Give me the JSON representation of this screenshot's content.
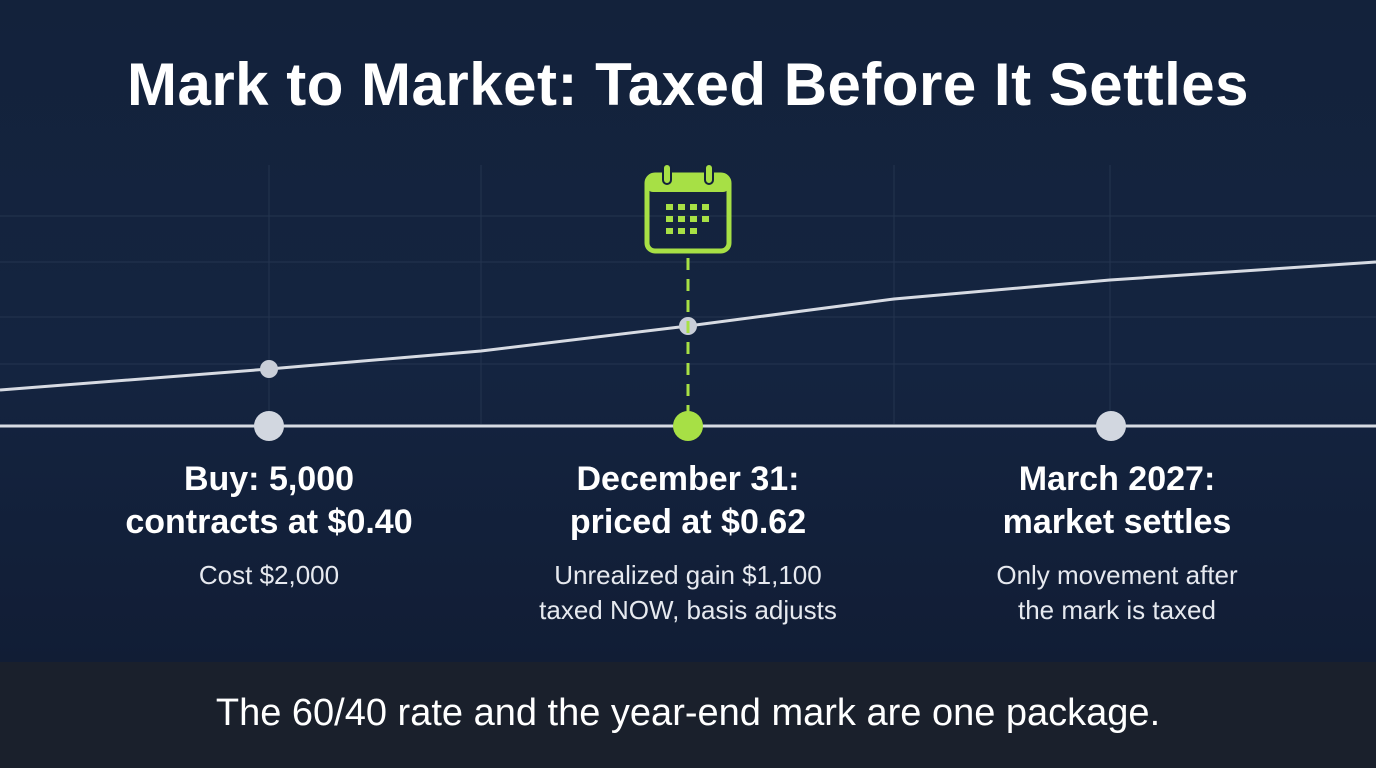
{
  "title": "Mark to Market: Taxed Before It Settles",
  "milestones": [
    {
      "heading": "Buy: 5,000 contracts at $0.40",
      "heading_lines": [
        "Buy: 5,000",
        "contracts at $0.40"
      ],
      "detail_lines": [
        "Cost $2,000"
      ],
      "marker": "grey-dot"
    },
    {
      "heading": "December 31: priced at $0.62",
      "heading_lines": [
        "December 31:",
        "priced at $0.62"
      ],
      "detail_lines": [
        "Unrealized gain $1,100",
        "taxed NOW, basis adjusts"
      ],
      "marker": "green-dot",
      "icon": "calendar-icon"
    },
    {
      "heading": "March 2027: market settles",
      "heading_lines": [
        "March 2027:",
        "market settles"
      ],
      "detail_lines": [
        "Only movement after",
        "the mark is taxed"
      ],
      "marker": "grey-dot"
    }
  ],
  "footer": "The 60/40 rate and the year-end mark are one package.",
  "colors": {
    "background": "#132039",
    "accent": "#a7e045",
    "line": "#d7dbe3",
    "footer_bg": "#1a202c"
  }
}
